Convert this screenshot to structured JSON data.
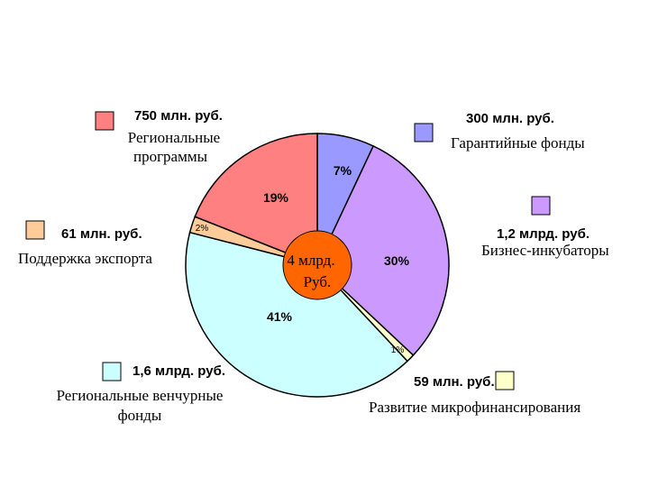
{
  "chart_data": {
    "type": "pie",
    "center_label": [
      "4 млрд.",
      "Руб."
    ],
    "slices": [
      {
        "name": "Гарантийные фонды",
        "amount": "300 млн. руб.",
        "percent": 7,
        "percent_label": "7%",
        "color": "#9999ff"
      },
      {
        "name": "Бизнес-инкубаторы",
        "amount": "1,2 млрд. руб.",
        "percent": 30,
        "percent_label": "30%",
        "color": "#cc99ff"
      },
      {
        "name": "Развитие микрофинансирования",
        "amount": "59 млн. руб.",
        "percent": 1,
        "percent_label": "1%",
        "color": "#ffffcc"
      },
      {
        "name": "Региональные венчурные фонды",
        "amount": "1,6 млрд. руб.",
        "percent": 41,
        "percent_label": "41%",
        "color": "#ccffff"
      },
      {
        "name": "Поддержка экспорта",
        "amount": "61 млн. руб.",
        "percent": 2,
        "percent_label": "2%",
        "color": "#ffcc99"
      },
      {
        "name": "Региональные программы",
        "amount": "750 млн. руб.",
        "percent": 19,
        "percent_label": "19%",
        "color": "#ff8080"
      }
    ],
    "center_color": "#ff6600"
  }
}
